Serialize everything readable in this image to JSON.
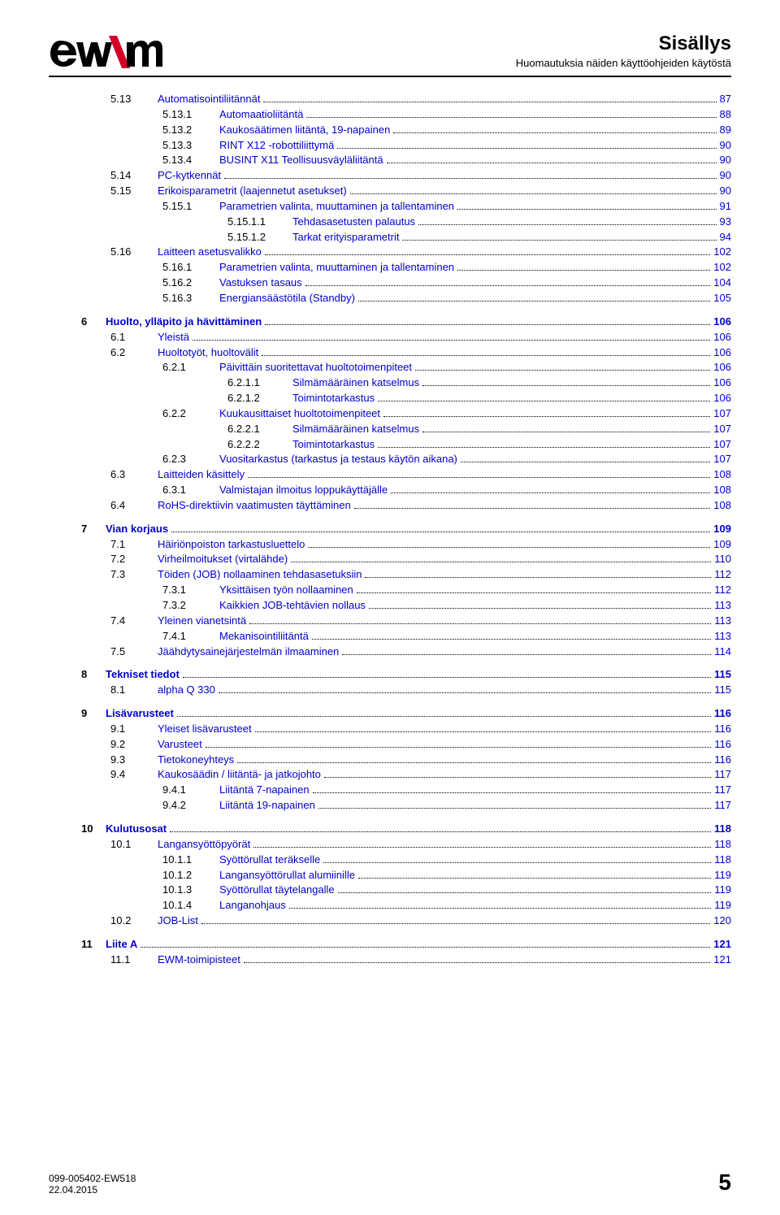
{
  "header": {
    "title": "Sisällys",
    "subtitle": "Huomautuksia näiden käyttöohjeiden käytöstä",
    "logo_colors": {
      "black": "#000000",
      "red": "#d4002a"
    }
  },
  "footer": {
    "doc_no": "099-005402-EW518",
    "date": "22.04.2015",
    "page": "5"
  },
  "toc": [
    {
      "lvl": 2,
      "num": "5.13",
      "title": "Automatisointiliitännät",
      "page": "87",
      "link": true
    },
    {
      "lvl": 3,
      "num": "5.13.1",
      "title": "Automaatioliitäntä",
      "page": "88",
      "link": true
    },
    {
      "lvl": 3,
      "num": "5.13.2",
      "title": "Kaukosäätimen liitäntä, 19-napainen",
      "page": "89",
      "link": true
    },
    {
      "lvl": 3,
      "num": "5.13.3",
      "title": "RINT X12 -robottiliittymä",
      "page": "90",
      "link": true
    },
    {
      "lvl": 3,
      "num": "5.13.4",
      "title": "BUSINT X11 Teollisuusväyläliitäntä",
      "page": "90",
      "link": true
    },
    {
      "lvl": 2,
      "num": "5.14",
      "title": "PC-kytkennät",
      "page": "90",
      "link": true
    },
    {
      "lvl": 2,
      "num": "5.15",
      "title": "Erikoisparametrit (laajennetut asetukset)",
      "page": "90",
      "link": true
    },
    {
      "lvl": 3,
      "num": "5.15.1",
      "title": "Parametrien valinta, muuttaminen ja tallentaminen",
      "page": "91",
      "link": true
    },
    {
      "lvl": 4,
      "num": "5.15.1.1",
      "title": "Tehdasasetusten palautus",
      "page": "93",
      "link": true
    },
    {
      "lvl": 4,
      "num": "5.15.1.2",
      "title": "Tarkat erityisparametrit",
      "page": "94",
      "link": true
    },
    {
      "lvl": 2,
      "num": "5.16",
      "title": "Laitteen asetusvalikko",
      "page": "102",
      "link": true
    },
    {
      "lvl": 3,
      "num": "5.16.1",
      "title": "Parametrien valinta, muuttaminen ja tallentaminen",
      "page": "102",
      "link": true
    },
    {
      "lvl": 3,
      "num": "5.16.2",
      "title": "Vastuksen tasaus",
      "page": "104",
      "link": true
    },
    {
      "lvl": 3,
      "num": "5.16.3",
      "title": "Energiansäästötila (Standby)",
      "page": "105",
      "link": true
    },
    {
      "lvl": 1,
      "num": "6",
      "title": "Huolto, ylläpito ja hävittäminen",
      "page": "106",
      "link": true
    },
    {
      "lvl": 2,
      "num": "6.1",
      "title": "Yleistä",
      "page": "106",
      "link": true
    },
    {
      "lvl": 2,
      "num": "6.2",
      "title": "Huoltotyöt, huoltovälit",
      "page": "106",
      "link": true
    },
    {
      "lvl": 3,
      "num": "6.2.1",
      "title": "Päivittäin suoritettavat huoltotoimenpiteet",
      "page": "106",
      "link": true
    },
    {
      "lvl": 4,
      "num": "6.2.1.1",
      "title": "Silmämääräinen katselmus",
      "page": "106",
      "link": true
    },
    {
      "lvl": 4,
      "num": "6.2.1.2",
      "title": "Toimintotarkastus",
      "page": "106",
      "link": true
    },
    {
      "lvl": 3,
      "num": "6.2.2",
      "title": "Kuukausittaiset huoltotoimenpiteet",
      "page": "107",
      "link": true
    },
    {
      "lvl": 4,
      "num": "6.2.2.1",
      "title": "Silmämääräinen katselmus",
      "page": "107",
      "link": true
    },
    {
      "lvl": 4,
      "num": "6.2.2.2",
      "title": "Toimintotarkastus",
      "page": "107",
      "link": true
    },
    {
      "lvl": 3,
      "num": "6.2.3",
      "title": "Vuositarkastus (tarkastus ja testaus käytön aikana)",
      "page": "107",
      "link": true
    },
    {
      "lvl": 2,
      "num": "6.3",
      "title": "Laitteiden käsittely",
      "page": "108",
      "link": true
    },
    {
      "lvl": 3,
      "num": "6.3.1",
      "title": "Valmistajan ilmoitus loppukäyttäjälle",
      "page": "108",
      "link": true
    },
    {
      "lvl": 2,
      "num": "6.4",
      "title": "RoHS-direktiivin vaatimusten täyttäminen",
      "page": "108",
      "link": true
    },
    {
      "lvl": 1,
      "num": "7",
      "title": "Vian korjaus",
      "page": "109",
      "link": true
    },
    {
      "lvl": 2,
      "num": "7.1",
      "title": "Häiriönpoiston tarkastusluettelo",
      "page": "109",
      "link": true
    },
    {
      "lvl": 2,
      "num": "7.2",
      "title": "Virheilmoitukset (virtalähde)",
      "page": "110",
      "link": true
    },
    {
      "lvl": 2,
      "num": "7.3",
      "title": "Töiden (JOB) nollaaminen tehdasasetuksiin",
      "page": "112",
      "link": true
    },
    {
      "lvl": 3,
      "num": "7.3.1",
      "title": "Yksittäisen työn nollaaminen",
      "page": "112",
      "link": true
    },
    {
      "lvl": 3,
      "num": "7.3.2",
      "title": "Kaikkien JOB-tehtävien nollaus",
      "page": "113",
      "link": true
    },
    {
      "lvl": 2,
      "num": "7.4",
      "title": "Yleinen vianetsintä",
      "page": "113",
      "link": true
    },
    {
      "lvl": 3,
      "num": "7.4.1",
      "title": "Mekanisointiliitäntä",
      "page": "113",
      "link": true
    },
    {
      "lvl": 2,
      "num": "7.5",
      "title": "Jäähdytysainejärjestelmän ilmaaminen",
      "page": "114",
      "link": true
    },
    {
      "lvl": 1,
      "num": "8",
      "title": "Tekniset tiedot",
      "page": "115",
      "link": true
    },
    {
      "lvl": 2,
      "num": "8.1",
      "title": "alpha Q 330",
      "page": "115",
      "link": true
    },
    {
      "lvl": 1,
      "num": "9",
      "title": "Lisävarusteet",
      "page": "116",
      "link": true
    },
    {
      "lvl": 2,
      "num": "9.1",
      "title": "Yleiset lisävarusteet",
      "page": "116",
      "link": true
    },
    {
      "lvl": 2,
      "num": "9.2",
      "title": "Varusteet",
      "page": "116",
      "link": true
    },
    {
      "lvl": 2,
      "num": "9.3",
      "title": "Tietokoneyhteys",
      "page": "116",
      "link": true
    },
    {
      "lvl": 2,
      "num": "9.4",
      "title": "Kaukosäädin / liitäntä- ja jatkojohto",
      "page": "117",
      "link": true
    },
    {
      "lvl": 3,
      "num": "9.4.1",
      "title": "Liitäntä 7-napainen",
      "page": "117",
      "link": true
    },
    {
      "lvl": 3,
      "num": "9.4.2",
      "title": "Liitäntä 19-napainen",
      "page": "117",
      "link": true
    },
    {
      "lvl": 1,
      "num": "10",
      "title": "Kulutusosat",
      "page": "118",
      "link": true
    },
    {
      "lvl": 2,
      "num": "10.1",
      "title": "Langansyöttöpyörät",
      "page": "118",
      "link": true
    },
    {
      "lvl": 3,
      "num": "10.1.1",
      "title": "Syöttörullat teräkselle",
      "page": "118",
      "link": true
    },
    {
      "lvl": 3,
      "num": "10.1.2",
      "title": "Langansyöttörullat alumiinille",
      "page": "119",
      "link": true
    },
    {
      "lvl": 3,
      "num": "10.1.3",
      "title": "Syöttörullat täytelangalle",
      "page": "119",
      "link": true
    },
    {
      "lvl": 3,
      "num": "10.1.4",
      "title": "Langanohjaus",
      "page": "119",
      "link": true
    },
    {
      "lvl": 2,
      "num": "10.2",
      "title": "JOB-List",
      "page": "120",
      "link": true
    },
    {
      "lvl": 1,
      "num": "11",
      "title": "Liite A",
      "page": "121",
      "link": true
    },
    {
      "lvl": 2,
      "num": "11.1",
      "title": "EWM-toimipisteet",
      "page": "121",
      "link": true
    }
  ],
  "indent_classes": {
    "1": "lvl1",
    "2": "lvl2",
    "3": "lvl3",
    "4": "lvl4"
  },
  "indent_widths": {
    "1": "30px",
    "2": "58px",
    "3": "70px",
    "4": "80px"
  }
}
